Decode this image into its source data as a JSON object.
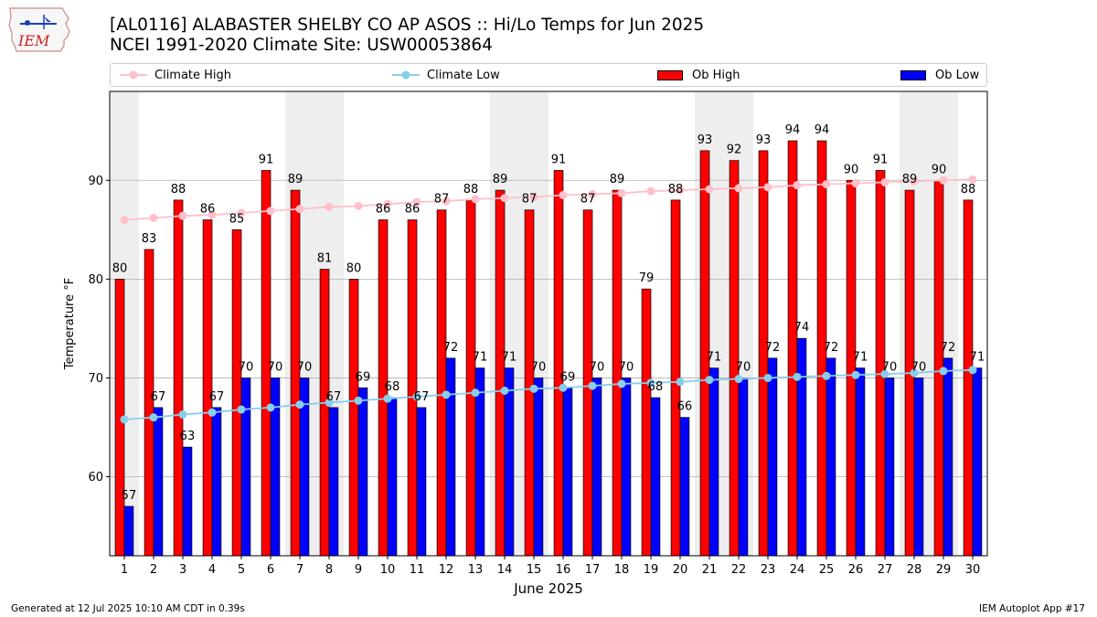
{
  "header": {
    "title_line1": "[AL0116] ALABASTER SHELBY CO AP ASOS :: Hi/Lo Temps for Jun 2025",
    "title_line2": "NCEI 1991-2020 Climate Site: USW00053864",
    "logo_text": "IEM"
  },
  "footer": {
    "generated": "Generated at 12 Jul 2025 10:10 AM CDT in 0.39s",
    "app": "IEM Autoplot App #17"
  },
  "colors": {
    "ob_high": "#ff0000",
    "ob_low": "#0000ff",
    "climate_high": "#ffc0cb",
    "climate_low": "#87ceeb",
    "weekend_shade": "#eeeeee",
    "grid": "#b0b0b0"
  },
  "chart_data": {
    "type": "bar",
    "xlabel": "June 2025",
    "ylabel": "Temperature °F",
    "ylim": [
      52,
      99
    ],
    "yticks": [
      60,
      70,
      80,
      90
    ],
    "grid": "horizontal",
    "legend_position": "top",
    "categories": [
      "1",
      "2",
      "3",
      "4",
      "5",
      "6",
      "7",
      "8",
      "9",
      "10",
      "11",
      "12",
      "13",
      "14",
      "15",
      "16",
      "17",
      "18",
      "19",
      "20",
      "21",
      "22",
      "23",
      "24",
      "25",
      "26",
      "27",
      "28",
      "29",
      "30"
    ],
    "shaded_days": [
      1,
      7,
      8,
      14,
      15,
      21,
      22,
      28,
      29
    ],
    "series": [
      {
        "name": "Ob High",
        "kind": "bar",
        "values": [
          80,
          83,
          88,
          86,
          85,
          91,
          89,
          81,
          80,
          86,
          86,
          87,
          88,
          89,
          87,
          91,
          87,
          89,
          79,
          88,
          93,
          92,
          93,
          94,
          94,
          90,
          91,
          89,
          90,
          88
        ]
      },
      {
        "name": "Ob Low",
        "kind": "bar",
        "values": [
          57,
          67,
          63,
          67,
          70,
          70,
          70,
          67,
          69,
          68,
          67,
          72,
          71,
          71,
          70,
          69,
          70,
          70,
          68,
          66,
          71,
          70,
          72,
          74,
          72,
          71,
          70,
          70,
          72,
          71
        ]
      },
      {
        "name": "Climate High",
        "kind": "line",
        "values": [
          86.0,
          86.2,
          86.4,
          86.5,
          86.7,
          86.9,
          87.1,
          87.3,
          87.4,
          87.6,
          87.8,
          87.9,
          88.1,
          88.2,
          88.3,
          88.5,
          88.6,
          88.7,
          88.9,
          89.0,
          89.1,
          89.2,
          89.3,
          89.5,
          89.6,
          89.7,
          89.8,
          89.9,
          90.0,
          90.1
        ]
      },
      {
        "name": "Climate Low",
        "kind": "line",
        "values": [
          65.8,
          66.0,
          66.3,
          66.5,
          66.8,
          67.0,
          67.3,
          67.5,
          67.7,
          67.9,
          68.1,
          68.3,
          68.5,
          68.7,
          68.9,
          69.0,
          69.2,
          69.4,
          69.5,
          69.6,
          69.8,
          69.9,
          70.0,
          70.1,
          70.2,
          70.3,
          70.4,
          70.5,
          70.7,
          70.8
        ]
      }
    ]
  }
}
